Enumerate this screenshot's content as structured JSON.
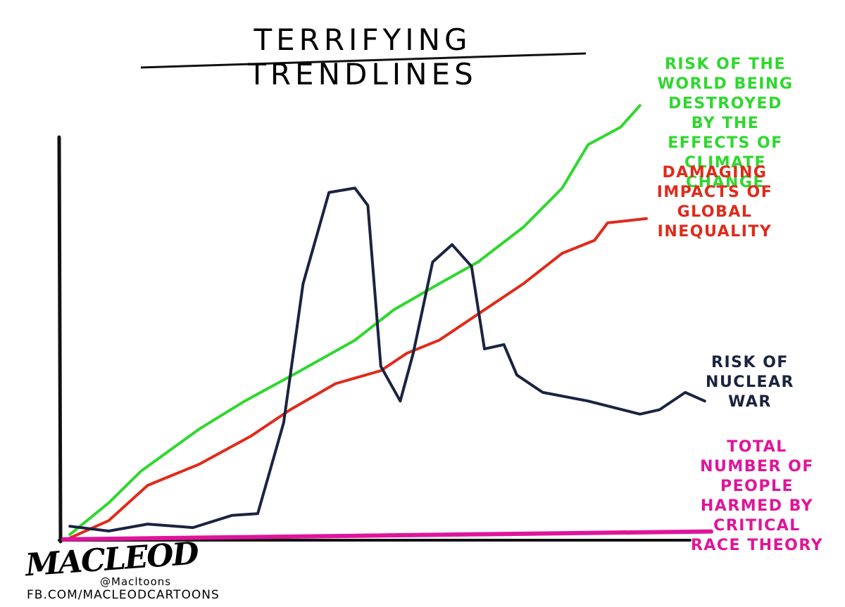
{
  "chart_data": {
    "type": "line",
    "title": "TERRIFYING TRENDLINES",
    "xlim": [
      0,
      100
    ],
    "ylim": [
      0,
      100
    ],
    "series": [
      {
        "name": "RISK OF THE WORLD BEING DESTROYED BY THE EFFECTS OF CLIMATE CHANGE",
        "color": "#2ed82e",
        "x": [
          1,
          7,
          12,
          21,
          28,
          36,
          45,
          51,
          58,
          64,
          71,
          77,
          81,
          86,
          89
        ],
        "values": [
          1.3,
          8.6,
          15.9,
          25.6,
          32,
          38.5,
          46,
          53,
          59,
          64,
          72,
          81,
          91,
          95,
          100
        ]
      },
      {
        "name": "DAMAGING IMPACTS OF GLOBAL INEQUALITY",
        "color": "#e02a1a",
        "x": [
          1,
          7,
          13,
          21,
          29,
          35,
          42,
          49,
          53,
          58,
          63,
          71,
          77,
          82,
          84,
          90
        ],
        "values": [
          0.5,
          4.5,
          12.6,
          17.5,
          24,
          30,
          36,
          39,
          43,
          46,
          51,
          59,
          66,
          69,
          73,
          74
        ]
      },
      {
        "name": "RISK OF NUCLEAR WAR",
        "color": "#1a2340",
        "x": [
          1,
          7,
          13,
          20,
          26,
          30,
          34,
          37,
          41,
          45,
          47,
          49,
          52,
          54,
          57,
          60,
          63,
          65,
          68,
          70,
          74,
          81,
          89,
          92,
          96,
          99
        ],
        "values": [
          3.2,
          2.1,
          3.7,
          2.9,
          5.7,
          6.1,
          27,
          59,
          80,
          81,
          77,
          40,
          32,
          43,
          64,
          68,
          63,
          44,
          45,
          38,
          34,
          32,
          29,
          30,
          34,
          32
        ]
      },
      {
        "name": "TOTAL NUMBER OF PEOPLE HARMED BY CRITICAL RACE THEORY",
        "color": "#e0149a",
        "x": [
          0,
          100
        ],
        "values": [
          0.2,
          2
        ]
      }
    ]
  },
  "signature": "MACLEOD",
  "handle": "@Macltoons",
  "facebook": "FB.COM/MACLEODCARTOONS"
}
